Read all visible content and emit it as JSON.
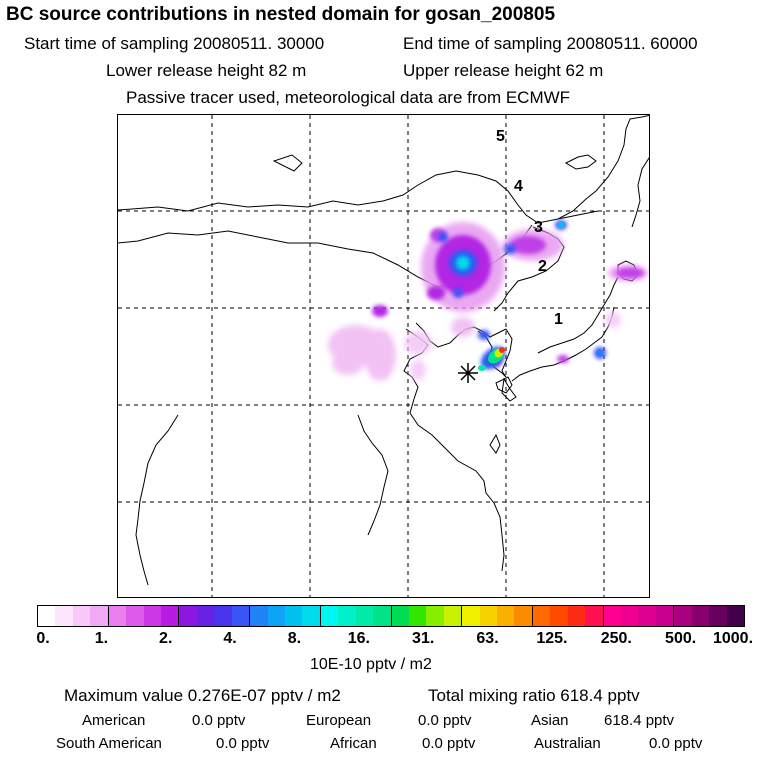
{
  "header": {
    "title": "BC  source contributions in nested domain for gosan_200805",
    "start_time": "Start time of sampling 20080511. 30000",
    "end_time": "End time of sampling 20080511. 60000",
    "lower_height": "Lower release height   82 m",
    "upper_height": "Upper release height   62 m",
    "tracer_note": "Passive tracer used, meteorological data are from ECMWF"
  },
  "map": {
    "markers": [
      {
        "label": "5"
      },
      {
        "label": "4"
      },
      {
        "label": "3"
      },
      {
        "label": "2"
      },
      {
        "label": "1"
      }
    ],
    "receptor": "gosan-receptor-star"
  },
  "colorbar": {
    "ticks": [
      "0.",
      "1.",
      "2.",
      "4.",
      "8.",
      "16.",
      "31.",
      "63.",
      "125.",
      "250.",
      "500.",
      "1000."
    ],
    "units": "10E-10 pptv / m2",
    "colors": [
      [
        "#ffffff",
        "#fde6fd",
        "#f9c8f9",
        "#f3a8f3"
      ],
      [
        "#ea7fef",
        "#de5bea",
        "#cd38e6",
        "#b81ce3"
      ],
      [
        "#8d16e0",
        "#6a21e6",
        "#4b34ee",
        "#3a55f5"
      ],
      [
        "#1f82f5",
        "#0fa3f3",
        "#00c2f0",
        "#00dcea"
      ],
      [
        "#00f6f0",
        "#00f0cc",
        "#00eaa8",
        "#00e388"
      ],
      [
        "#00dd55",
        "#33e600",
        "#88ee00",
        "#c8f200"
      ],
      [
        "#f0f000",
        "#f6d200",
        "#f9b000",
        "#fb8c00"
      ],
      [
        "#ff6a00",
        "#ff4a00",
        "#ff2a14",
        "#ff1050"
      ],
      [
        "#ff0090",
        "#f00090",
        "#dd0090",
        "#c8008f"
      ],
      [
        "#aa0080",
        "#880070",
        "#66005f",
        "#44004f"
      ]
    ]
  },
  "stats": {
    "maximum": "Maximum value  0.276E-07 pptv / m2",
    "total": "Total mixing ratio       618.4 pptv",
    "american": {
      "label": "American",
      "value": "0.0 pptv"
    },
    "european": {
      "label": "European",
      "value": "0.0 pptv"
    },
    "asian": {
      "label": "Asian",
      "value": "618.4 pptv"
    },
    "south_american": {
      "label": "South American",
      "value": "0.0 pptv"
    },
    "african": {
      "label": "African",
      "value": "0.0 pptv"
    },
    "australian": {
      "label": "Australian",
      "value": "0.0 pptv"
    }
  }
}
